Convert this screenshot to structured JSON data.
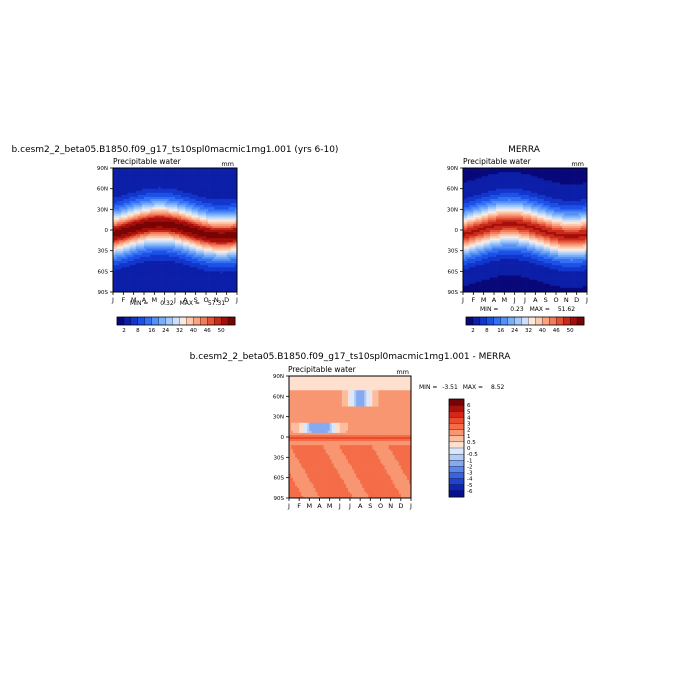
{
  "chart_data": [
    {
      "type": "heatmap",
      "title": "b.cesm2_2_beta05.B1850.f09_g17_ts10spl0macmic1mg1.001 (yrs 6-10)",
      "subtitle": "Precipitable water",
      "units": "mm",
      "field": "model",
      "x_tick_labels": [
        "J",
        "F",
        "M",
        "A",
        "M",
        "J",
        "J",
        "A",
        "S",
        "O",
        "N",
        "D",
        "J"
      ],
      "y_tick_labels": [
        "90S",
        "60S",
        "30S",
        "0",
        "30N",
        "60N",
        "90N"
      ],
      "stats": {
        "min_label": "MIN =",
        "min": "0.32",
        "max_label": "MAX =",
        "max": "57.31"
      },
      "colorbar": {
        "orientation": "horizontal",
        "labels": [
          "2",
          "8",
          "16",
          "24",
          "32",
          "40",
          "46",
          "50"
        ]
      }
    },
    {
      "type": "heatmap",
      "title": "MERRA",
      "subtitle": "Precipitable water",
      "units": "mm",
      "field": "obs",
      "x_tick_labels": [
        "J",
        "F",
        "M",
        "A",
        "M",
        "J",
        "J",
        "A",
        "S",
        "O",
        "N",
        "D",
        "J"
      ],
      "y_tick_labels": [
        "90S",
        "60S",
        "30S",
        "0",
        "30N",
        "60N",
        "90N"
      ],
      "stats": {
        "min_label": "MIN =",
        "min": "0.23",
        "max_label": "MAX =",
        "max": "51.62"
      },
      "colorbar": {
        "orientation": "horizontal",
        "labels": [
          "2",
          "8",
          "16",
          "24",
          "32",
          "40",
          "46",
          "50"
        ]
      }
    },
    {
      "type": "heatmap",
      "title": "b.cesm2_2_beta05.B1850.f09_g17_ts10spl0macmic1mg1.001 - MERRA",
      "subtitle": "Precipitable water",
      "units": "mm",
      "field": "diff",
      "x_tick_labels": [
        "J",
        "F",
        "M",
        "A",
        "M",
        "J",
        "J",
        "A",
        "S",
        "O",
        "N",
        "D",
        "J"
      ],
      "y_tick_labels": [
        "90S",
        "60S",
        "30S",
        "0",
        "30N",
        "60N",
        "90N"
      ],
      "stats": {
        "min_label": "MIN =",
        "min": "-3.51",
        "max_label": "MAX =",
        "max": "8.52"
      },
      "colorbar": {
        "orientation": "vertical",
        "labels": [
          "6",
          "5",
          "4",
          "3",
          "2",
          "1",
          "0.5",
          "0",
          "-0.5",
          "-1",
          "-2",
          "-3",
          "-4",
          "-5",
          "-6"
        ]
      }
    }
  ],
  "colors": {
    "full_scale": [
      "#08087a",
      "#0c1fa8",
      "#1236cc",
      "#1d51e6",
      "#3470f5",
      "#5490f7",
      "#7aaef8",
      "#a4c8fa",
      "#cde0fb",
      "#fbe9dc",
      "#fccab0",
      "#f9a584",
      "#f27d5d",
      "#e2533a",
      "#c92a1a",
      "#a30f0a",
      "#780404"
    ],
    "diff_scale": [
      "#750404",
      "#a8100b",
      "#d5261a",
      "#ec4a2d",
      "#f46d48",
      "#f89672",
      "#fbbd9f",
      "#fde0cf",
      "#dbe8fb",
      "#b2ccf6",
      "#86aaf0",
      "#5c86e8",
      "#3a63df",
      "#2042cc",
      "#0e24b3",
      "#06108e"
    ]
  }
}
